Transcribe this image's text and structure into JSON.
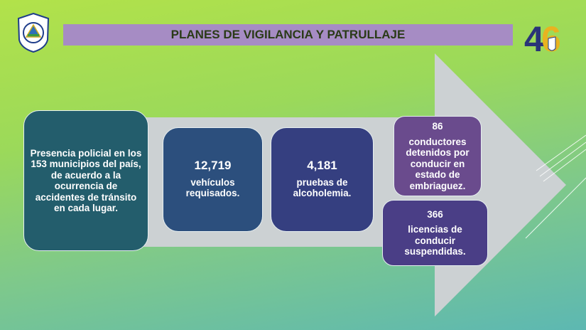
{
  "header": {
    "title": "PLANES DE VIGILANCIA Y PATRULLAJE"
  },
  "logos": {
    "left": "POLICIA NACIONAL NICARAGUA",
    "right": "46"
  },
  "boxes": [
    {
      "text": "Presencia policial en los 153 municipios del país, de acuerdo a la ocurrencia de accidentes de tránsito en cada lugar.",
      "color": "#235d6c"
    },
    {
      "number": "12,719",
      "text": "vehículos requisados.",
      "color": "#2c4f7d"
    },
    {
      "number": "4,181",
      "text": "pruebas de alcoholemia.",
      "color": "#353f80"
    },
    {
      "number": "86",
      "text": "conductores detenidos por conducir en estado de embriaguez.",
      "color": "#6a4b8d"
    },
    {
      "number": "366",
      "text": "licencias de conducir suspendidas.",
      "color": "#4a3e86"
    }
  ],
  "colors": {
    "arrow": "#ccd1d3",
    "title_bar": "#a68cc4"
  }
}
